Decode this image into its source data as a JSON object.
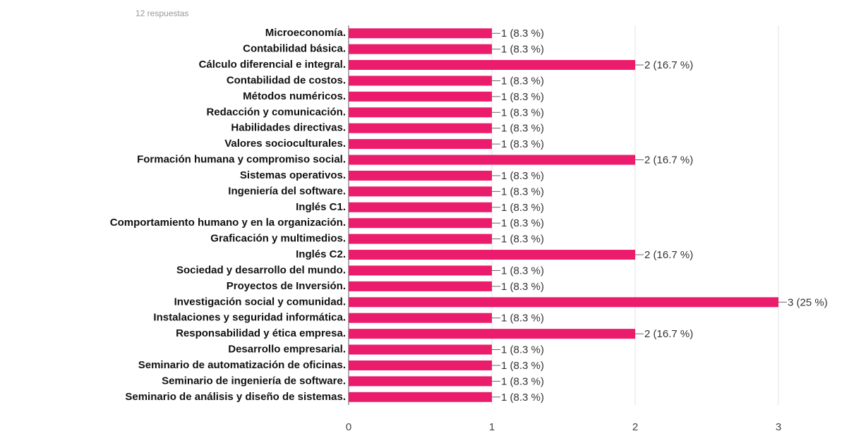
{
  "chart_data": {
    "type": "bar",
    "orientation": "horizontal",
    "subtitle": "12 respuestas",
    "categories": [
      "Microeconomía.",
      "Contabilidad básica.",
      "Cálculo diferencial e integral.",
      "Contabilidad de costos.",
      "Métodos numéricos.",
      "Redacción y comunicación.",
      "Habilidades directivas.",
      "Valores socioculturales.",
      "Formación humana y compromiso social.",
      "Sistemas operativos.",
      "Ingeniería del software.",
      "Inglés C1.",
      "Comportamiento humano y en la organización.",
      "Graficación y multimedios.",
      "Inglés C2.",
      "Sociedad y desarrollo del mundo.",
      "Proyectos de Inversión.",
      "Investigación social y comunidad.",
      "Instalaciones y seguridad informática.",
      "Responsabilidad y ética empresa.",
      "Desarrollo empresarial.",
      "Seminario de automatización de oficinas.",
      "Seminario de ingeniería de software.",
      "Seminario de análisis y diseño de sistemas."
    ],
    "values": [
      1,
      1,
      2,
      1,
      1,
      1,
      1,
      1,
      2,
      1,
      1,
      1,
      1,
      1,
      2,
      1,
      1,
      3,
      1,
      2,
      1,
      1,
      1,
      1
    ],
    "value_labels": [
      "1 (8.3 %)",
      "1 (8.3 %)",
      "2 (16.7 %)",
      "1 (8.3 %)",
      "1 (8.3 %)",
      "1 (8.3 %)",
      "1 (8.3 %)",
      "1 (8.3 %)",
      "2 (16.7 %)",
      "1 (8.3 %)",
      "1 (8.3 %)",
      "1 (8.3 %)",
      "1 (8.3 %)",
      "1 (8.3 %)",
      "2 (16.7 %)",
      "1 (8.3 %)",
      "1 (8.3 %)",
      "3 (25 %)",
      "1 (8.3 %)",
      "2 (16.7 %)",
      "1 (8.3 %)",
      "1 (8.3 %)",
      "1 (8.3 %)",
      "1 (8.3 %)"
    ],
    "color": "#ec1c6c",
    "xlim": [
      0,
      3
    ],
    "xticks": [
      0,
      1,
      2,
      3
    ],
    "grid": true
  }
}
